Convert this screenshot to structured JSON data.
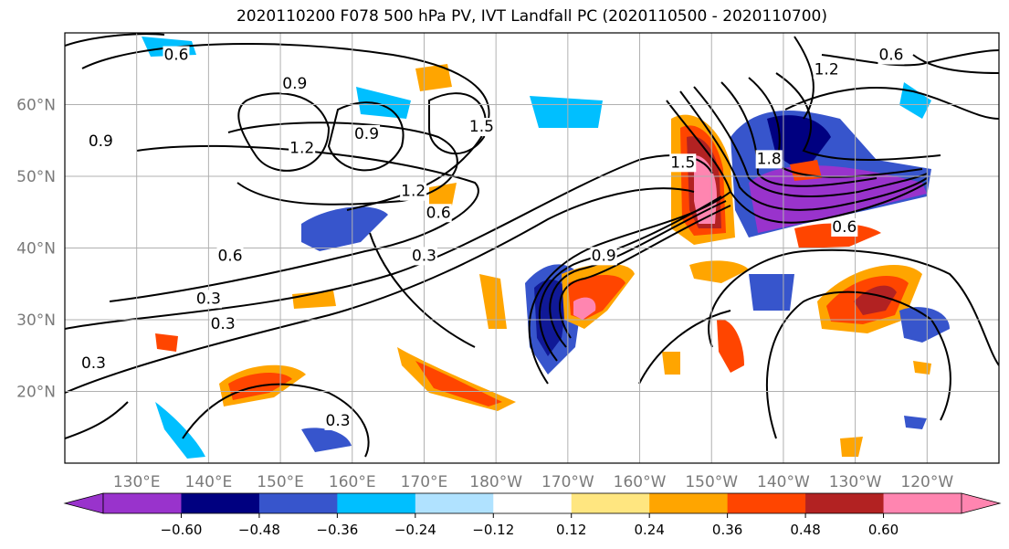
{
  "chart_data": {
    "type": "contour_map",
    "title": "2020110200 F078 500 hPa PV, IVT Landfall PC (2020110500 - 2020110700)",
    "map": {
      "lon_range": [
        120,
        250
      ],
      "lat_range": [
        10,
        70
      ],
      "lon_ticks": [
        130,
        140,
        150,
        160,
        170,
        180,
        190,
        200,
        210,
        220,
        230,
        240
      ],
      "lon_tick_labels": [
        "130°E",
        "140°E",
        "150°E",
        "160°E",
        "170°E",
        "180°W",
        "170°W",
        "160°W",
        "150°W",
        "140°W",
        "130°W",
        "120°W"
      ],
      "lat_ticks": [
        20,
        30,
        40,
        50,
        60
      ],
      "lat_tick_labels": [
        "20°N",
        "30°N",
        "40°N",
        "50°N",
        "60°N"
      ],
      "grid": true
    },
    "colorbar": {
      "levels": [
        -0.6,
        -0.48,
        -0.36,
        -0.24,
        -0.12,
        0.12,
        0.24,
        0.36,
        0.48,
        0.6
      ],
      "tick_labels": [
        "−0.60",
        "−0.48",
        "−0.36",
        "−0.24",
        "−0.12",
        "0.12",
        "0.24",
        "0.36",
        "0.48",
        "0.60"
      ],
      "colors": [
        "#9933cc",
        "#000080",
        "#3755cc",
        "#00bfff",
        "#b0e2ff",
        "#ffffff",
        "#ffe680",
        "#ffa500",
        "#ff4500",
        "#b22222",
        "#ff85b0"
      ],
      "extend": "both"
    },
    "contour_labels": [
      "0.3",
      "0.6",
      "0.9",
      "1.2",
      "1.5",
      "1.8"
    ],
    "contour_annotations": [
      {
        "text": "0.6",
        "lon": 135.5,
        "lat": 67
      },
      {
        "text": "0.9",
        "lon": 125,
        "lat": 55
      },
      {
        "text": "0.9",
        "lon": 152,
        "lat": 63
      },
      {
        "text": "1.2",
        "lon": 153,
        "lat": 54
      },
      {
        "text": "0.9",
        "lon": 162,
        "lat": 56
      },
      {
        "text": "1.5",
        "lon": 178,
        "lat": 57
      },
      {
        "text": "1.2",
        "lon": 168.5,
        "lat": 48
      },
      {
        "text": "0.6",
        "lon": 172,
        "lat": 45
      },
      {
        "text": "0.3",
        "lon": 170,
        "lat": 39
      },
      {
        "text": "0.6",
        "lon": 143,
        "lat": 39
      },
      {
        "text": "0.3",
        "lon": 140,
        "lat": 33
      },
      {
        "text": "0.3",
        "lon": 142,
        "lat": 29.5
      },
      {
        "text": "0.3",
        "lon": 124,
        "lat": 24
      },
      {
        "text": "0.3",
        "lon": 158,
        "lat": 16
      },
      {
        "text": "0.9",
        "lon": 195,
        "lat": 39
      },
      {
        "text": "1.5",
        "lon": 206,
        "lat": 52
      },
      {
        "text": "1.8",
        "lon": 218,
        "lat": 52.5
      },
      {
        "text": "0.6",
        "lon": 228.5,
        "lat": 43
      },
      {
        "text": "1.2",
        "lon": 226,
        "lat": 65
      },
      {
        "text": "0.6",
        "lon": 235,
        "lat": 67
      }
    ]
  }
}
